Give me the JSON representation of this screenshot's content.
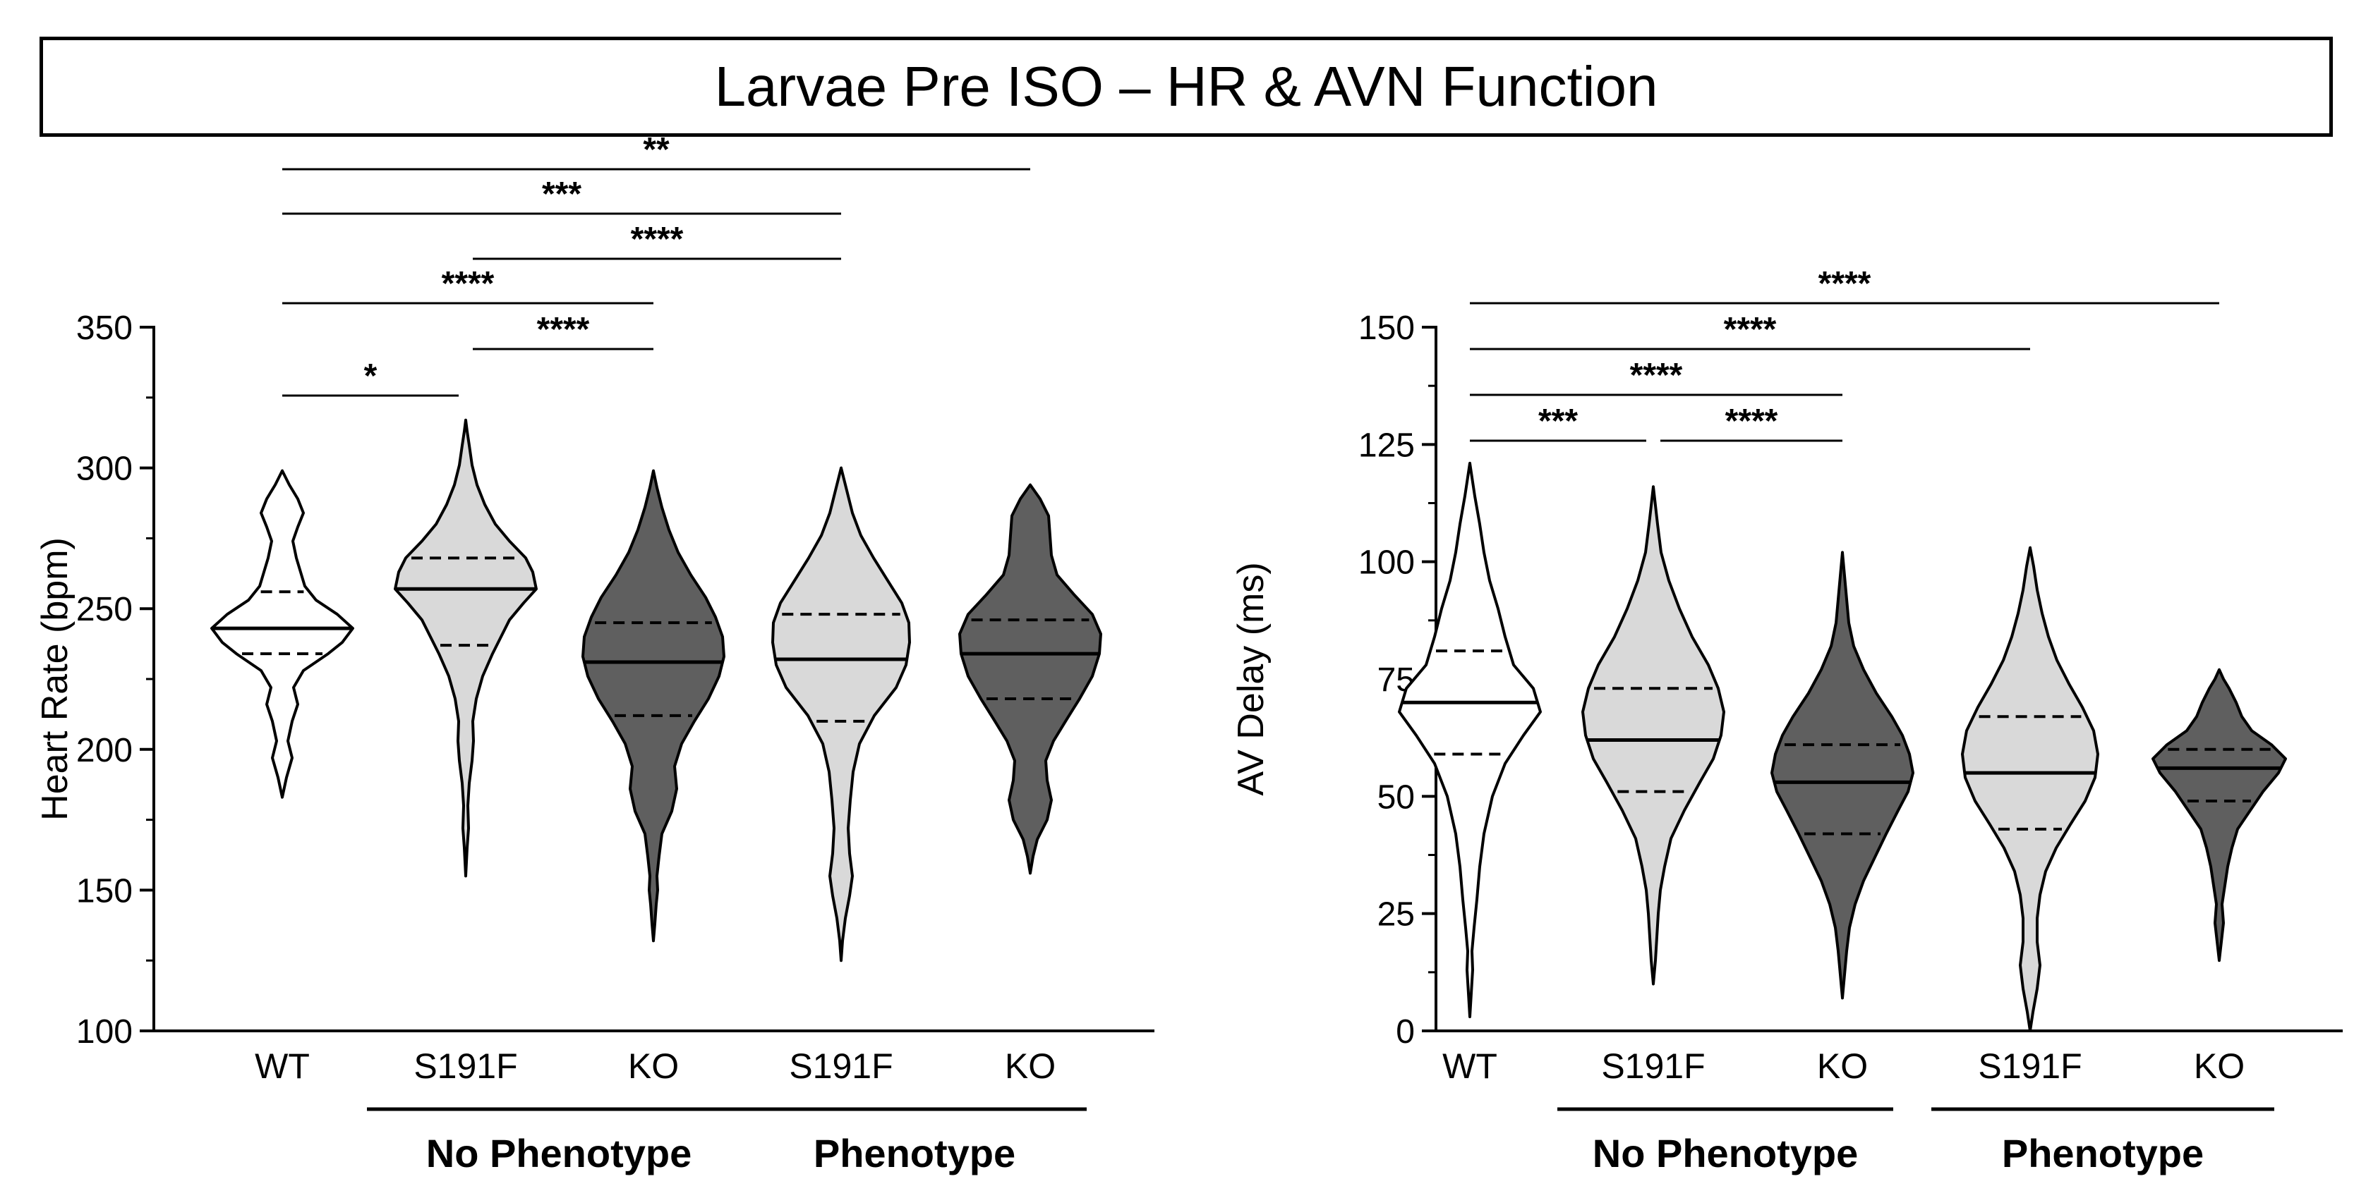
{
  "title": "Larvae Pre ISO – HR & AVN Function",
  "chart_data": [
    {
      "type": "violin",
      "ylabel": "Heart  Rate (bpm)",
      "ylim": [
        100,
        350
      ],
      "yticks": [
        100,
        150,
        200,
        250,
        300,
        350
      ],
      "categories": [
        "WT",
        "S191F",
        "KO",
        "S191F",
        "KO"
      ],
      "groups": [
        {
          "label": "No Phenotype",
          "span": [
            1,
            2
          ]
        },
        {
          "label": "Phenotype",
          "span": [
            3,
            4
          ]
        }
      ],
      "series": [
        {
          "name": "WT",
          "fill": "#ffffff",
          "line": "#000000",
          "median": 243,
          "q1": 234,
          "q3": 256,
          "range": [
            183,
            299
          ],
          "profile": [
            [
              183,
              0
            ],
            [
              190,
              0.06
            ],
            [
              197,
              0.14
            ],
            [
              203,
              0.08
            ],
            [
              210,
              0.14
            ],
            [
              216,
              0.22
            ],
            [
              222,
              0.16
            ],
            [
              228,
              0.3
            ],
            [
              234,
              0.65
            ],
            [
              238,
              0.85
            ],
            [
              243,
              1.0
            ],
            [
              248,
              0.78
            ],
            [
              253,
              0.48
            ],
            [
              258,
              0.32
            ],
            [
              263,
              0.26
            ],
            [
              268,
              0.2
            ],
            [
              274,
              0.15
            ],
            [
              279,
              0.22
            ],
            [
              284,
              0.3
            ],
            [
              289,
              0.22
            ],
            [
              294,
              0.1
            ],
            [
              299,
              0
            ]
          ]
        },
        {
          "name": "S191F",
          "fill": "#d9d9d9",
          "line": "#000000",
          "median": 257,
          "q1": 237,
          "q3": 268,
          "range": [
            155,
            317
          ],
          "profile": [
            [
              155,
              0
            ],
            [
              165,
              0.02
            ],
            [
              172,
              0.04
            ],
            [
              180,
              0.03
            ],
            [
              188,
              0.05
            ],
            [
              196,
              0.09
            ],
            [
              203,
              0.11
            ],
            [
              210,
              0.1
            ],
            [
              218,
              0.15
            ],
            [
              226,
              0.24
            ],
            [
              234,
              0.38
            ],
            [
              240,
              0.5
            ],
            [
              246,
              0.62
            ],
            [
              252,
              0.82
            ],
            [
              257,
              1.0
            ],
            [
              263,
              0.95
            ],
            [
              268,
              0.85
            ],
            [
              274,
              0.62
            ],
            [
              280,
              0.42
            ],
            [
              287,
              0.27
            ],
            [
              294,
              0.16
            ],
            [
              301,
              0.09
            ],
            [
              308,
              0.05
            ],
            [
              313,
              0.02
            ],
            [
              317,
              0
            ]
          ]
        },
        {
          "name": "KO",
          "fill": "#5f5f5f",
          "line": "#000000",
          "median": 231,
          "q1": 212,
          "q3": 245,
          "range": [
            132,
            299
          ],
          "profile": [
            [
              132,
              0
            ],
            [
              138,
              0.02
            ],
            [
              145,
              0.04
            ],
            [
              150,
              0.06
            ],
            [
              155,
              0.05
            ],
            [
              162,
              0.08
            ],
            [
              170,
              0.12
            ],
            [
              178,
              0.26
            ],
            [
              186,
              0.33
            ],
            [
              194,
              0.3
            ],
            [
              202,
              0.4
            ],
            [
              210,
              0.58
            ],
            [
              218,
              0.78
            ],
            [
              226,
              0.93
            ],
            [
              233,
              1.0
            ],
            [
              240,
              0.98
            ],
            [
              247,
              0.88
            ],
            [
              254,
              0.74
            ],
            [
              262,
              0.53
            ],
            [
              270,
              0.35
            ],
            [
              278,
              0.22
            ],
            [
              286,
              0.12
            ],
            [
              293,
              0.05
            ],
            [
              299,
              0
            ]
          ]
        },
        {
          "name": "S191F",
          "fill": "#d9d9d9",
          "line": "#000000",
          "median": 232,
          "q1": 210,
          "q3": 248,
          "range": [
            125,
            300
          ],
          "profile": [
            [
              125,
              0
            ],
            [
              132,
              0.02
            ],
            [
              140,
              0.06
            ],
            [
              148,
              0.12
            ],
            [
              155,
              0.16
            ],
            [
              163,
              0.12
            ],
            [
              172,
              0.1
            ],
            [
              182,
              0.13
            ],
            [
              192,
              0.17
            ],
            [
              202,
              0.26
            ],
            [
              212,
              0.47
            ],
            [
              222,
              0.78
            ],
            [
              230,
              0.92
            ],
            [
              238,
              0.97
            ],
            [
              245,
              0.96
            ],
            [
              252,
              0.86
            ],
            [
              260,
              0.66
            ],
            [
              268,
              0.46
            ],
            [
              276,
              0.28
            ],
            [
              284,
              0.16
            ],
            [
              292,
              0.08
            ],
            [
              300,
              0
            ]
          ]
        },
        {
          "name": "KO",
          "fill": "#5f5f5f",
          "line": "#000000",
          "median": 234,
          "q1": 218,
          "q3": 246,
          "range": [
            156,
            294
          ],
          "profile": [
            [
              156,
              0
            ],
            [
              162,
              0.04
            ],
            [
              168,
              0.1
            ],
            [
              175,
              0.24
            ],
            [
              182,
              0.3
            ],
            [
              189,
              0.24
            ],
            [
              196,
              0.22
            ],
            [
              203,
              0.33
            ],
            [
              210,
              0.5
            ],
            [
              218,
              0.7
            ],
            [
              226,
              0.88
            ],
            [
              234,
              0.98
            ],
            [
              241,
              1.0
            ],
            [
              248,
              0.88
            ],
            [
              255,
              0.62
            ],
            [
              262,
              0.38
            ],
            [
              269,
              0.3
            ],
            [
              276,
              0.28
            ],
            [
              283,
              0.26
            ],
            [
              289,
              0.14
            ],
            [
              294,
              0
            ]
          ]
        }
      ],
      "significance": [
        {
          "from": 0,
          "to": 1,
          "label": "*"
        },
        {
          "from": 1,
          "to": 2,
          "label": "****"
        },
        {
          "from": 0,
          "to": 2,
          "label": "****"
        },
        {
          "from": 1,
          "to": 3,
          "label": "****"
        },
        {
          "from": 0,
          "to": 3,
          "label": "***"
        },
        {
          "from": 0,
          "to": 4,
          "label": "**"
        }
      ]
    },
    {
      "type": "violin",
      "ylabel": "AV Delay (ms)",
      "ylim": [
        0,
        150
      ],
      "yticks": [
        0,
        25,
        50,
        75,
        100,
        125,
        150
      ],
      "categories": [
        "WT",
        "S191F",
        "KO",
        "S191F",
        "KO"
      ],
      "groups": [
        {
          "label": "No Phenotype",
          "span": [
            1,
            2
          ]
        },
        {
          "label": "Phenotype",
          "span": [
            3,
            4
          ]
        }
      ],
      "series": [
        {
          "name": "WT",
          "fill": "#ffffff",
          "line": "#000000",
          "median": 70,
          "q1": 59,
          "q3": 81,
          "range": [
            3,
            121
          ],
          "profile": [
            [
              3,
              0
            ],
            [
              8,
              0.02
            ],
            [
              13,
              0.04
            ],
            [
              17,
              0.03
            ],
            [
              22,
              0.06
            ],
            [
              28,
              0.1
            ],
            [
              35,
              0.14
            ],
            [
              42,
              0.2
            ],
            [
              50,
              0.32
            ],
            [
              57,
              0.5
            ],
            [
              63,
              0.76
            ],
            [
              68,
              1.0
            ],
            [
              73,
              0.9
            ],
            [
              78,
              0.62
            ],
            [
              84,
              0.5
            ],
            [
              90,
              0.4
            ],
            [
              96,
              0.28
            ],
            [
              102,
              0.2
            ],
            [
              108,
              0.14
            ],
            [
              114,
              0.07
            ],
            [
              118,
              0.03
            ],
            [
              121,
              0
            ]
          ]
        },
        {
          "name": "S191F",
          "fill": "#d9d9d9",
          "line": "#000000",
          "median": 62,
          "q1": 51,
          "q3": 73,
          "range": [
            10,
            116
          ],
          "profile": [
            [
              10,
              0
            ],
            [
              15,
              0.03
            ],
            [
              20,
              0.05
            ],
            [
              25,
              0.07
            ],
            [
              30,
              0.1
            ],
            [
              35,
              0.16
            ],
            [
              41,
              0.25
            ],
            [
              47,
              0.44
            ],
            [
              53,
              0.66
            ],
            [
              58,
              0.85
            ],
            [
              63,
              0.96
            ],
            [
              68,
              1.0
            ],
            [
              73,
              0.92
            ],
            [
              78,
              0.78
            ],
            [
              84,
              0.55
            ],
            [
              90,
              0.37
            ],
            [
              96,
              0.22
            ],
            [
              102,
              0.11
            ],
            [
              108,
              0.06
            ],
            [
              112,
              0.03
            ],
            [
              116,
              0
            ]
          ]
        },
        {
          "name": "KO",
          "fill": "#5f5f5f",
          "line": "#000000",
          "median": 53,
          "q1": 42,
          "q3": 61,
          "range": [
            7,
            102
          ],
          "profile": [
            [
              7,
              0
            ],
            [
              12,
              0.03
            ],
            [
              17,
              0.06
            ],
            [
              22,
              0.1
            ],
            [
              27,
              0.18
            ],
            [
              32,
              0.3
            ],
            [
              37,
              0.46
            ],
            [
              42,
              0.62
            ],
            [
              47,
              0.79
            ],
            [
              51,
              0.93
            ],
            [
              55,
              1.0
            ],
            [
              59,
              0.95
            ],
            [
              63,
              0.85
            ],
            [
              67,
              0.7
            ],
            [
              72,
              0.48
            ],
            [
              77,
              0.3
            ],
            [
              82,
              0.16
            ],
            [
              87,
              0.09
            ],
            [
              92,
              0.06
            ],
            [
              97,
              0.03
            ],
            [
              102,
              0
            ]
          ]
        },
        {
          "name": "S191F",
          "fill": "#d9d9d9",
          "line": "#000000",
          "median": 55,
          "q1": 43,
          "q3": 67,
          "range": [
            0,
            103
          ],
          "profile": [
            [
              0,
              0
            ],
            [
              4,
              0.04
            ],
            [
              9,
              0.1
            ],
            [
              14,
              0.14
            ],
            [
              19,
              0.1
            ],
            [
              24,
              0.1
            ],
            [
              29,
              0.14
            ],
            [
              34,
              0.22
            ],
            [
              39,
              0.37
            ],
            [
              44,
              0.57
            ],
            [
              49,
              0.78
            ],
            [
              54,
              0.92
            ],
            [
              59,
              0.96
            ],
            [
              64,
              0.9
            ],
            [
              69,
              0.74
            ],
            [
              74,
              0.55
            ],
            [
              79,
              0.38
            ],
            [
              84,
              0.26
            ],
            [
              89,
              0.17
            ],
            [
              94,
              0.1
            ],
            [
              99,
              0.05
            ],
            [
              103,
              0
            ]
          ]
        },
        {
          "name": "KO",
          "fill": "#5f5f5f",
          "line": "#000000",
          "median": 56,
          "q1": 49,
          "q3": 60,
          "range": [
            15,
            77
          ],
          "profile": [
            [
              15,
              0
            ],
            [
              19,
              0.03
            ],
            [
              23,
              0.06
            ],
            [
              27,
              0.04
            ],
            [
              31,
              0.08
            ],
            [
              35,
              0.12
            ],
            [
              39,
              0.18
            ],
            [
              43,
              0.26
            ],
            [
              47,
              0.44
            ],
            [
              51,
              0.62
            ],
            [
              55,
              0.84
            ],
            [
              58,
              0.94
            ],
            [
              61,
              0.74
            ],
            [
              64,
              0.46
            ],
            [
              67,
              0.32
            ],
            [
              70,
              0.24
            ],
            [
              73,
              0.14
            ],
            [
              75,
              0.06
            ],
            [
              77,
              0
            ]
          ]
        }
      ],
      "significance": [
        {
          "from": 0,
          "to": 1,
          "label": "***"
        },
        {
          "from": 1,
          "to": 2,
          "label": "****"
        },
        {
          "from": 0,
          "to": 2,
          "label": "****"
        },
        {
          "from": 0,
          "to": 3,
          "label": "****"
        },
        {
          "from": 0,
          "to": 4,
          "label": "****"
        }
      ]
    }
  ]
}
